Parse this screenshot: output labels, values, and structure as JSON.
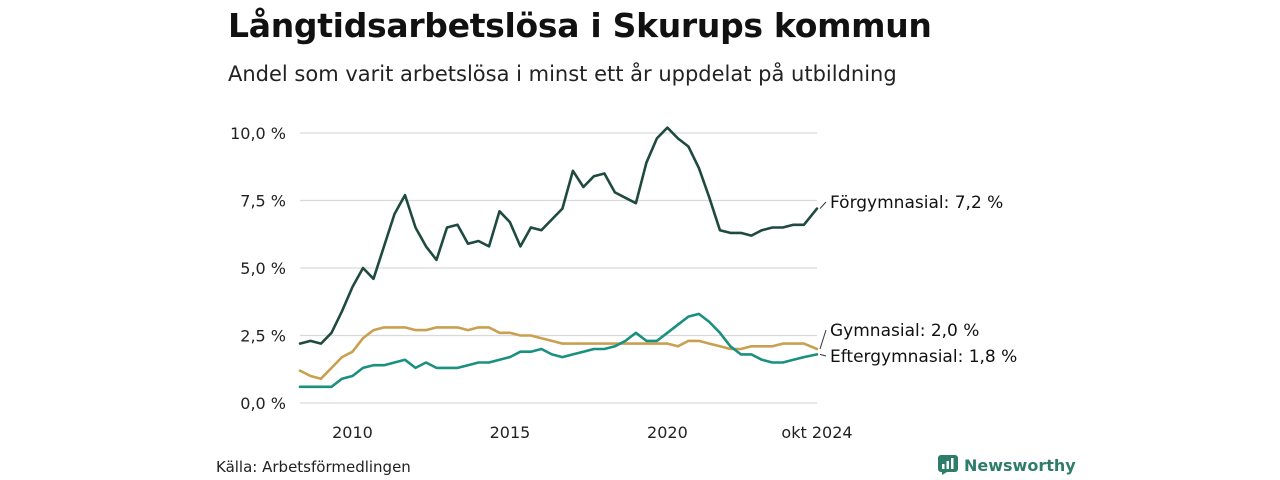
{
  "header": {
    "title": "Långtidsarbetslösa i Skurups kommun",
    "subtitle": "Andel som varit arbetslösa i minst ett år uppdelat på utbildning"
  },
  "footer": {
    "source": "Källa: Arbetsförmedlingen",
    "brand": "Newsworthy"
  },
  "colors": {
    "forgymnasial": "#1f4a40",
    "gymnasial": "#c9a050",
    "eftergymnasial": "#1a9080",
    "grid": "#d9d9d9",
    "brand": "#2e7d6b"
  },
  "chart_data": {
    "type": "line",
    "title": "Långtidsarbetslösa i Skurups kommun",
    "subtitle": "Andel som varit arbetslösa i minst ett år uppdelat på utbildning",
    "x_ticks": [
      "2010",
      "2015",
      "2020",
      "okt 2024"
    ],
    "y_ticks": [
      "0,0 %",
      "2,5 %",
      "5,0 %",
      "7,5 %",
      "10,0 %"
    ],
    "ylim": [
      0,
      10
    ],
    "grid": true,
    "legend": "end-labels",
    "series": [
      {
        "name": "Förgymnasial",
        "end_label": "Förgymnasial: 7,2 %",
        "points": [
          [
            "2008-05",
            2.2
          ],
          [
            "2008-09",
            2.3
          ],
          [
            "2009-01",
            2.2
          ],
          [
            "2009-05",
            2.6
          ],
          [
            "2009-09",
            3.4
          ],
          [
            "2010-01",
            4.3
          ],
          [
            "2010-05",
            5.0
          ],
          [
            "2010-09",
            4.6
          ],
          [
            "2011-01",
            5.8
          ],
          [
            "2011-05",
            7.0
          ],
          [
            "2011-09",
            7.7
          ],
          [
            "2012-01",
            6.5
          ],
          [
            "2012-05",
            5.8
          ],
          [
            "2012-09",
            5.3
          ],
          [
            "2013-01",
            6.5
          ],
          [
            "2013-05",
            6.6
          ],
          [
            "2013-09",
            5.9
          ],
          [
            "2014-01",
            6.0
          ],
          [
            "2014-05",
            5.8
          ],
          [
            "2014-09",
            7.1
          ],
          [
            "2015-01",
            6.7
          ],
          [
            "2015-05",
            5.8
          ],
          [
            "2015-09",
            6.5
          ],
          [
            "2016-01",
            6.4
          ],
          [
            "2016-05",
            6.8
          ],
          [
            "2016-09",
            7.2
          ],
          [
            "2017-01",
            8.6
          ],
          [
            "2017-05",
            8.0
          ],
          [
            "2017-09",
            8.4
          ],
          [
            "2018-01",
            8.5
          ],
          [
            "2018-05",
            7.8
          ],
          [
            "2018-09",
            7.6
          ],
          [
            "2019-01",
            7.4
          ],
          [
            "2019-05",
            8.9
          ],
          [
            "2019-09",
            9.8
          ],
          [
            "2020-01",
            10.2
          ],
          [
            "2020-05",
            9.8
          ],
          [
            "2020-09",
            9.5
          ],
          [
            "2021-01",
            8.7
          ],
          [
            "2021-05",
            7.6
          ],
          [
            "2021-09",
            6.4
          ],
          [
            "2022-01",
            6.3
          ],
          [
            "2022-05",
            6.3
          ],
          [
            "2022-09",
            6.2
          ],
          [
            "2023-01",
            6.4
          ],
          [
            "2023-05",
            6.5
          ],
          [
            "2023-09",
            6.5
          ],
          [
            "2024-01",
            6.6
          ],
          [
            "2024-05",
            6.6
          ],
          [
            "2024-10",
            7.2
          ]
        ]
      },
      {
        "name": "Gymnasial",
        "end_label": "Gymnasial: 2,0 %",
        "points": [
          [
            "2008-05",
            1.2
          ],
          [
            "2008-09",
            1.0
          ],
          [
            "2009-01",
            0.9
          ],
          [
            "2009-05",
            1.3
          ],
          [
            "2009-09",
            1.7
          ],
          [
            "2010-01",
            1.9
          ],
          [
            "2010-05",
            2.4
          ],
          [
            "2010-09",
            2.7
          ],
          [
            "2011-01",
            2.8
          ],
          [
            "2011-05",
            2.8
          ],
          [
            "2011-09",
            2.8
          ],
          [
            "2012-01",
            2.7
          ],
          [
            "2012-05",
            2.7
          ],
          [
            "2012-09",
            2.8
          ],
          [
            "2013-01",
            2.8
          ],
          [
            "2013-05",
            2.8
          ],
          [
            "2013-09",
            2.7
          ],
          [
            "2014-01",
            2.8
          ],
          [
            "2014-05",
            2.8
          ],
          [
            "2014-09",
            2.6
          ],
          [
            "2015-01",
            2.6
          ],
          [
            "2015-05",
            2.5
          ],
          [
            "2015-09",
            2.5
          ],
          [
            "2016-01",
            2.4
          ],
          [
            "2016-05",
            2.3
          ],
          [
            "2016-09",
            2.2
          ],
          [
            "2017-01",
            2.2
          ],
          [
            "2017-05",
            2.2
          ],
          [
            "2017-09",
            2.2
          ],
          [
            "2018-01",
            2.2
          ],
          [
            "2018-05",
            2.2
          ],
          [
            "2018-09",
            2.2
          ],
          [
            "2019-01",
            2.2
          ],
          [
            "2019-05",
            2.2
          ],
          [
            "2019-09",
            2.2
          ],
          [
            "2020-01",
            2.2
          ],
          [
            "2020-05",
            2.1
          ],
          [
            "2020-09",
            2.3
          ],
          [
            "2021-01",
            2.3
          ],
          [
            "2021-05",
            2.2
          ],
          [
            "2021-09",
            2.1
          ],
          [
            "2022-01",
            2.0
          ],
          [
            "2022-05",
            2.0
          ],
          [
            "2022-09",
            2.1
          ],
          [
            "2023-01",
            2.1
          ],
          [
            "2023-05",
            2.1
          ],
          [
            "2023-09",
            2.2
          ],
          [
            "2024-01",
            2.2
          ],
          [
            "2024-05",
            2.2
          ],
          [
            "2024-10",
            2.0
          ]
        ]
      },
      {
        "name": "Eftergymnasial",
        "end_label": "Eftergymnasial: 1,8 %",
        "points": [
          [
            "2008-05",
            0.6
          ],
          [
            "2008-09",
            0.6
          ],
          [
            "2009-01",
            0.6
          ],
          [
            "2009-05",
            0.6
          ],
          [
            "2009-09",
            0.9
          ],
          [
            "2010-01",
            1.0
          ],
          [
            "2010-05",
            1.3
          ],
          [
            "2010-09",
            1.4
          ],
          [
            "2011-01",
            1.4
          ],
          [
            "2011-05",
            1.5
          ],
          [
            "2011-09",
            1.6
          ],
          [
            "2012-01",
            1.3
          ],
          [
            "2012-05",
            1.5
          ],
          [
            "2012-09",
            1.3
          ],
          [
            "2013-01",
            1.3
          ],
          [
            "2013-05",
            1.3
          ],
          [
            "2013-09",
            1.4
          ],
          [
            "2014-01",
            1.5
          ],
          [
            "2014-05",
            1.5
          ],
          [
            "2014-09",
            1.6
          ],
          [
            "2015-01",
            1.7
          ],
          [
            "2015-05",
            1.9
          ],
          [
            "2015-09",
            1.9
          ],
          [
            "2016-01",
            2.0
          ],
          [
            "2016-05",
            1.8
          ],
          [
            "2016-09",
            1.7
          ],
          [
            "2017-01",
            1.8
          ],
          [
            "2017-05",
            1.9
          ],
          [
            "2017-09",
            2.0
          ],
          [
            "2018-01",
            2.0
          ],
          [
            "2018-05",
            2.1
          ],
          [
            "2018-09",
            2.3
          ],
          [
            "2019-01",
            2.6
          ],
          [
            "2019-05",
            2.3
          ],
          [
            "2019-09",
            2.3
          ],
          [
            "2020-01",
            2.6
          ],
          [
            "2020-05",
            2.9
          ],
          [
            "2020-09",
            3.2
          ],
          [
            "2021-01",
            3.3
          ],
          [
            "2021-05",
            3.0
          ],
          [
            "2021-09",
            2.6
          ],
          [
            "2022-01",
            2.1
          ],
          [
            "2022-05",
            1.8
          ],
          [
            "2022-09",
            1.8
          ],
          [
            "2023-01",
            1.6
          ],
          [
            "2023-05",
            1.5
          ],
          [
            "2023-09",
            1.5
          ],
          [
            "2024-01",
            1.6
          ],
          [
            "2024-05",
            1.7
          ],
          [
            "2024-10",
            1.8
          ]
        ]
      }
    ]
  }
}
